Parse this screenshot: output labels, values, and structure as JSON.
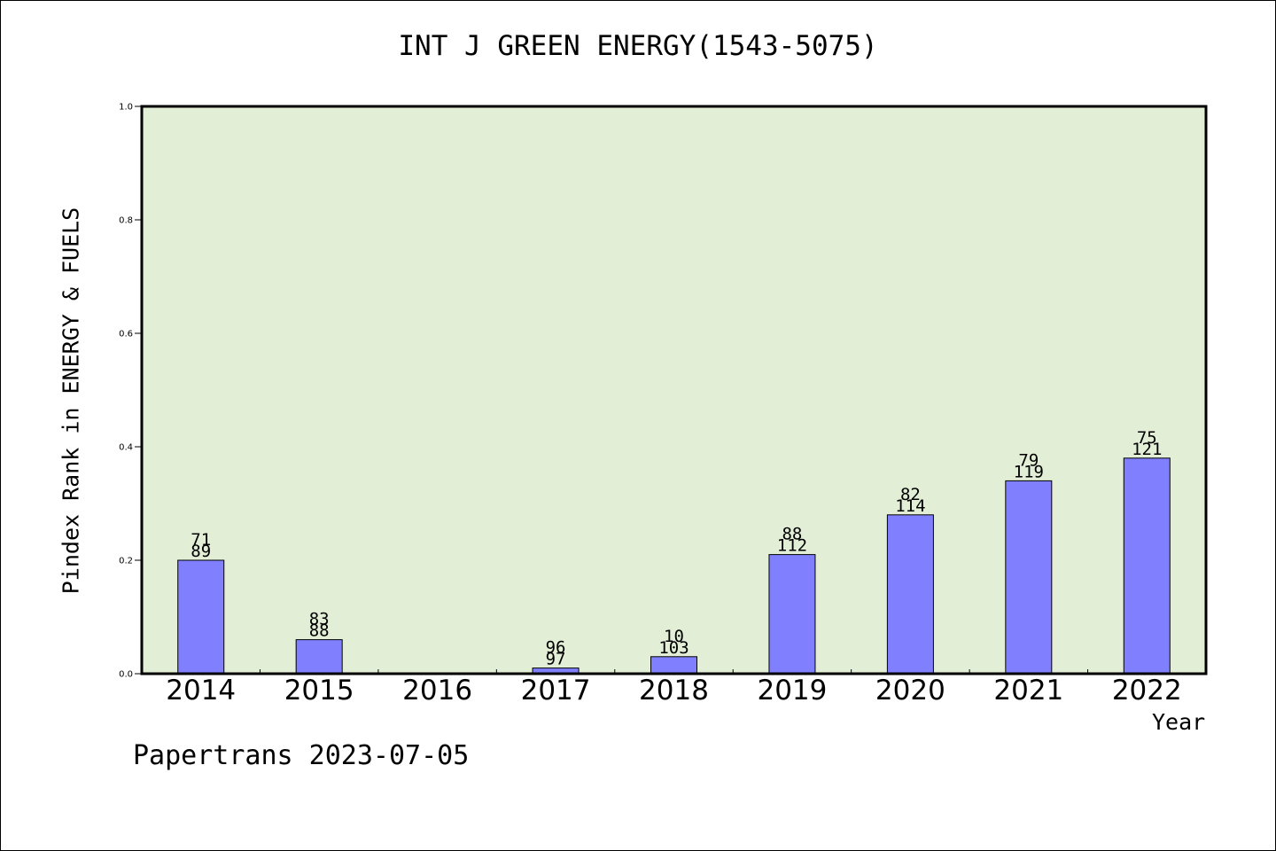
{
  "chart_data": {
    "type": "bar",
    "title": "INT J GREEN ENERGY(1543-5075)",
    "xlabel": "Year",
    "ylabel": "Pindex Rank in ENERGY & FUELS",
    "footer": "Papertrans 2023-07-05",
    "categories": [
      "2014",
      "2015",
      "2016",
      "2017",
      "2018",
      "2019",
      "2020",
      "2021",
      "2022"
    ],
    "values": [
      0.2,
      0.06,
      0.0,
      0.01,
      0.03,
      0.21,
      0.28,
      0.34,
      0.38
    ],
    "label_top": [
      "71",
      "83",
      "",
      "96",
      "10",
      "88",
      "82",
      "79",
      "75"
    ],
    "label_bottom": [
      "89",
      "88",
      "",
      "97",
      "103",
      "112",
      "114",
      "119",
      "121"
    ],
    "ylim": [
      0,
      1.0
    ],
    "yticks": [
      "0.0",
      "0.2",
      "0.4",
      "0.6",
      "0.8",
      "1.0"
    ],
    "grid": false,
    "legend": "none",
    "colors": {
      "plot_background": "#e2efd6",
      "bar_fill": "#8080ff",
      "bar_stroke": "#000000",
      "axis": "#000000"
    }
  }
}
